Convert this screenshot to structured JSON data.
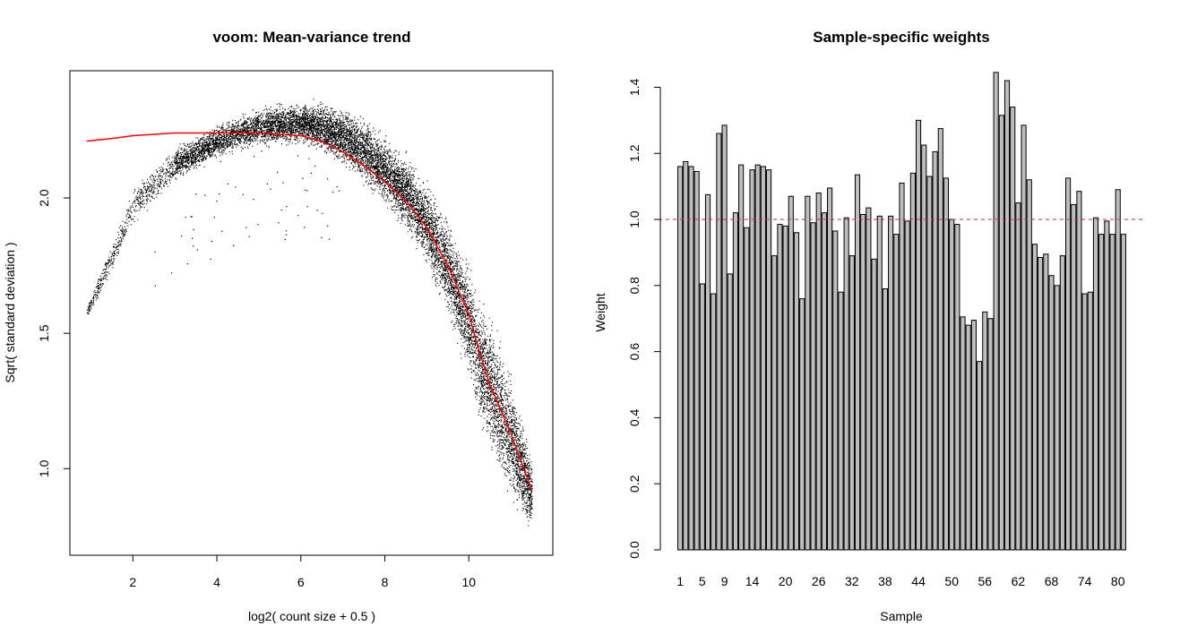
{
  "chart_data": [
    {
      "type": "scatter",
      "title": "voom: Mean-variance trend",
      "xlabel": "log2( count size + 0.5 )",
      "ylabel": "Sqrt( standard deviation )",
      "xlim": [
        0.5,
        12
      ],
      "ylim": [
        0.68,
        2.47
      ],
      "xticks": [
        "2",
        "4",
        "6",
        "8",
        "10"
      ],
      "yticks": [
        "1.0",
        "1.5",
        "2.0"
      ],
      "point_color": "#000000",
      "trend_color": "#ff0000",
      "n_points_approx": 15000,
      "trend": {
        "x": [
          0.9,
          1.5,
          2.0,
          3.0,
          4.0,
          5.0,
          6.0,
          6.5,
          7.0,
          7.5,
          8.0,
          8.5,
          9.0,
          9.5,
          10.0,
          10.2,
          10.5,
          11.0,
          11.5
        ],
        "y": [
          2.21,
          2.22,
          2.23,
          2.24,
          2.24,
          2.24,
          2.23,
          2.21,
          2.17,
          2.12,
          2.06,
          1.99,
          1.89,
          1.75,
          1.57,
          1.46,
          1.31,
          1.13,
          0.92
        ]
      },
      "band": {
        "x": [
          0.9,
          1.5,
          2.0,
          3.0,
          4.0,
          5.0,
          6.0,
          6.5,
          7.0,
          7.5,
          8.0,
          8.5,
          9.0,
          9.5,
          10.0,
          10.2,
          10.5,
          11.0,
          11.5
        ],
        "y_low": [
          1.55,
          1.72,
          1.9,
          2.05,
          2.14,
          2.18,
          2.18,
          2.15,
          2.1,
          2.04,
          1.96,
          1.86,
          1.72,
          1.55,
          1.3,
          1.15,
          1.02,
          0.85,
          0.75
        ],
        "y_high": [
          1.6,
          1.85,
          2.05,
          2.2,
          2.28,
          2.35,
          2.37,
          2.37,
          2.35,
          2.31,
          2.25,
          2.18,
          2.08,
          1.95,
          1.78,
          1.7,
          1.6,
          1.38,
          1.05
        ]
      }
    },
    {
      "type": "bar",
      "title": "Sample-specific weights",
      "xlabel": "Sample",
      "ylabel": "Weight",
      "ylim": [
        0,
        1.45
      ],
      "yticks": [
        "0.0",
        "0.2",
        "0.4",
        "0.6",
        "0.8",
        "1.0",
        "1.2",
        "1.4"
      ],
      "xtick_labels": [
        "1",
        "5",
        "9",
        "14",
        "20",
        "26",
        "32",
        "38",
        "44",
        "50",
        "56",
        "62",
        "68",
        "74",
        "80"
      ],
      "reference_line": 1.0,
      "bar_color": "#bebebe",
      "reference_color": "#d62728",
      "categories": [
        "1",
        "2",
        "3",
        "4",
        "5",
        "6",
        "7",
        "8",
        "9",
        "10",
        "11",
        "12",
        "13",
        "14",
        "15",
        "16",
        "17",
        "18",
        "19",
        "20",
        "21",
        "22",
        "23",
        "24",
        "25",
        "26",
        "27",
        "28",
        "29",
        "30",
        "31",
        "32",
        "33",
        "34",
        "35",
        "36",
        "37",
        "38",
        "39",
        "40",
        "41",
        "42",
        "43",
        "44",
        "45",
        "46",
        "47",
        "48",
        "49",
        "50",
        "51",
        "52",
        "53",
        "54",
        "55",
        "56",
        "57",
        "58",
        "59",
        "60",
        "61",
        "62",
        "63",
        "64",
        "65",
        "66",
        "67",
        "68",
        "69",
        "70",
        "71",
        "72",
        "73",
        "74",
        "75",
        "76",
        "77",
        "78",
        "79",
        "80",
        "81"
      ],
      "values": [
        1.16,
        1.175,
        1.16,
        1.145,
        0.805,
        1.075,
        0.775,
        1.26,
        1.285,
        0.835,
        1.02,
        1.165,
        0.975,
        1.15,
        1.165,
        1.16,
        1.15,
        0.89,
        0.985,
        0.98,
        1.07,
        0.96,
        0.76,
        1.07,
        0.99,
        1.08,
        1.02,
        1.095,
        0.965,
        0.78,
        1.005,
        0.89,
        1.135,
        1.015,
        1.035,
        0.88,
        1.01,
        0.79,
        1.01,
        0.955,
        1.11,
        0.995,
        1.14,
        1.3,
        1.225,
        1.13,
        1.205,
        1.275,
        1.125,
        1.0,
        0.985,
        0.705,
        0.68,
        0.695,
        0.57,
        0.72,
        0.7,
        1.445,
        1.315,
        1.42,
        1.34,
        1.05,
        1.285,
        1.12,
        0.925,
        0.885,
        0.895,
        0.83,
        0.8,
        0.89,
        1.125,
        1.045,
        1.085,
        0.775,
        0.78,
        1.005,
        0.955,
        0.995,
        0.955,
        1.09,
        0.955
      ]
    }
  ]
}
